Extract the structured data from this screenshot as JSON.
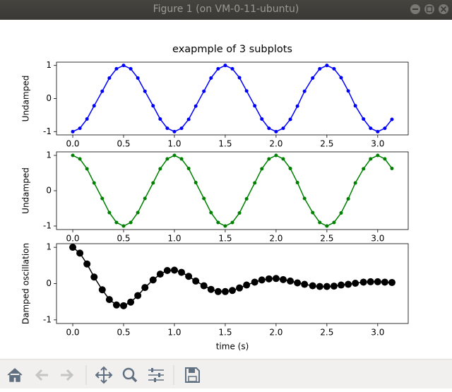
{
  "window": {
    "title": "Figure 1 (on VM-0-11-ubuntu)"
  },
  "chart_data": [
    {
      "type": "line",
      "title": "exapmple of 3 subplots",
      "ylabel": "Undamped",
      "color": "#0000ff",
      "marker": ".",
      "x": [
        0,
        0.07,
        0.14,
        0.21,
        0.29,
        0.36,
        0.43,
        0.5,
        0.57,
        0.64,
        0.71,
        0.79,
        0.86,
        0.93,
        1.0,
        1.07,
        1.14,
        1.21,
        1.29,
        1.36,
        1.43,
        1.5,
        1.57,
        1.64,
        1.71,
        1.79,
        1.86,
        1.93,
        2.0,
        2.07,
        2.14,
        2.21,
        2.28,
        2.36,
        2.43,
        2.5,
        2.57,
        2.64,
        2.71,
        2.78,
        2.86,
        2.93,
        3.0,
        3.07,
        3.14
      ],
      "values": [
        -1,
        -0.9,
        -0.62,
        -0.22,
        0.22,
        0.62,
        0.9,
        1,
        0.9,
        0.62,
        0.22,
        -0.22,
        -0.62,
        -0.9,
        -1,
        -0.9,
        -0.63,
        -0.23,
        0.22,
        0.62,
        0.9,
        1,
        0.9,
        0.63,
        0.23,
        -0.22,
        -0.62,
        -0.9,
        -1,
        -0.9,
        -0.63,
        -0.23,
        0.22,
        0.62,
        0.9,
        1,
        0.9,
        0.63,
        0.23,
        -0.22,
        -0.62,
        -0.9,
        -1,
        -0.9,
        -0.63
      ],
      "xlim": [
        -0.16,
        3.3
      ],
      "ylim": [
        -1.1,
        1.1
      ],
      "xticks": [
        {
          "value": 0,
          "label": "0.0"
        },
        {
          "value": 0.5,
          "label": "0.5"
        },
        {
          "value": 1,
          "label": "1.0"
        },
        {
          "value": 1.5,
          "label": "1.5"
        },
        {
          "value": 2,
          "label": "2.0"
        },
        {
          "value": 2.5,
          "label": "2.5"
        },
        {
          "value": 3,
          "label": "3.0"
        }
      ],
      "yticks": [
        -1,
        0,
        1
      ]
    },
    {
      "type": "line",
      "ylabel": "Undamped",
      "color": "#008000",
      "marker": ".",
      "x": [
        0,
        0.07,
        0.14,
        0.21,
        0.29,
        0.36,
        0.43,
        0.5,
        0.57,
        0.64,
        0.71,
        0.79,
        0.86,
        0.93,
        1.0,
        1.07,
        1.14,
        1.21,
        1.29,
        1.36,
        1.43,
        1.5,
        1.57,
        1.64,
        1.71,
        1.79,
        1.86,
        1.93,
        2.0,
        2.07,
        2.14,
        2.21,
        2.28,
        2.36,
        2.43,
        2.5,
        2.57,
        2.64,
        2.71,
        2.78,
        2.86,
        2.93,
        3.0,
        3.07,
        3.14
      ],
      "values": [
        1,
        0.9,
        0.62,
        0.22,
        -0.22,
        -0.62,
        -0.9,
        -1,
        -0.9,
        -0.62,
        -0.22,
        0.22,
        0.62,
        0.9,
        1,
        0.9,
        0.63,
        0.23,
        -0.22,
        -0.62,
        -0.9,
        -1,
        -0.9,
        -0.63,
        -0.23,
        0.22,
        0.62,
        0.9,
        1,
        0.9,
        0.63,
        0.23,
        -0.22,
        -0.62,
        -0.9,
        -1,
        -0.9,
        -0.63,
        -0.23,
        0.22,
        0.62,
        0.9,
        1,
        0.9,
        0.63
      ],
      "xlim": [
        -0.16,
        3.3
      ],
      "ylim": [
        -1.1,
        1.1
      ],
      "xticks": [
        {
          "value": 0,
          "label": "0.0"
        },
        {
          "value": 0.5,
          "label": "0.5"
        },
        {
          "value": 1,
          "label": "1.0"
        },
        {
          "value": 1.5,
          "label": "1.5"
        },
        {
          "value": 2,
          "label": "2.0"
        },
        {
          "value": 2.5,
          "label": "2.5"
        },
        {
          "value": 3,
          "label": "3.0"
        }
      ],
      "yticks": [
        -1,
        0,
        1
      ]
    },
    {
      "type": "line",
      "ylabel": "Damped oscillation",
      "xlabel": "time (s)",
      "color": "#000000",
      "marker": "o",
      "x": [
        0,
        0.07,
        0.14,
        0.21,
        0.29,
        0.36,
        0.43,
        0.5,
        0.57,
        0.64,
        0.71,
        0.79,
        0.86,
        0.93,
        1.0,
        1.07,
        1.14,
        1.21,
        1.29,
        1.36,
        1.43,
        1.5,
        1.57,
        1.64,
        1.71,
        1.79,
        1.86,
        1.93,
        2.0,
        2.07,
        2.14,
        2.21,
        2.28,
        2.36,
        2.43,
        2.5,
        2.57,
        2.64,
        2.71,
        2.78,
        2.86,
        2.93,
        3.0,
        3.07,
        3.14
      ],
      "values": [
        1,
        0.84,
        0.54,
        0.18,
        -0.17,
        -0.44,
        -0.59,
        -0.61,
        -0.51,
        -0.33,
        -0.11,
        0.1,
        0.26,
        0.36,
        0.37,
        0.31,
        0.2,
        0.07,
        -0.06,
        -0.16,
        -0.22,
        -0.22,
        -0.19,
        -0.12,
        -0.04,
        0.04,
        0.1,
        0.13,
        0.14,
        0.11,
        0.07,
        0.02,
        -0.02,
        -0.06,
        -0.08,
        -0.08,
        -0.07,
        -0.04,
        -0.02,
        0.01,
        0.04,
        0.05,
        0.05,
        0.04,
        0.03
      ],
      "xlim": [
        -0.16,
        3.3
      ],
      "ylim": [
        -1.1,
        1.1
      ],
      "xticks": [
        {
          "value": 0,
          "label": "0.0"
        },
        {
          "value": 0.5,
          "label": "0.5"
        },
        {
          "value": 1,
          "label": "1.0"
        },
        {
          "value": 1.5,
          "label": "1.5"
        },
        {
          "value": 2,
          "label": "2.0"
        },
        {
          "value": 2.5,
          "label": "2.5"
        },
        {
          "value": 3,
          "label": "3.0"
        }
      ],
      "yticks": [
        -1,
        0,
        1
      ]
    }
  ]
}
